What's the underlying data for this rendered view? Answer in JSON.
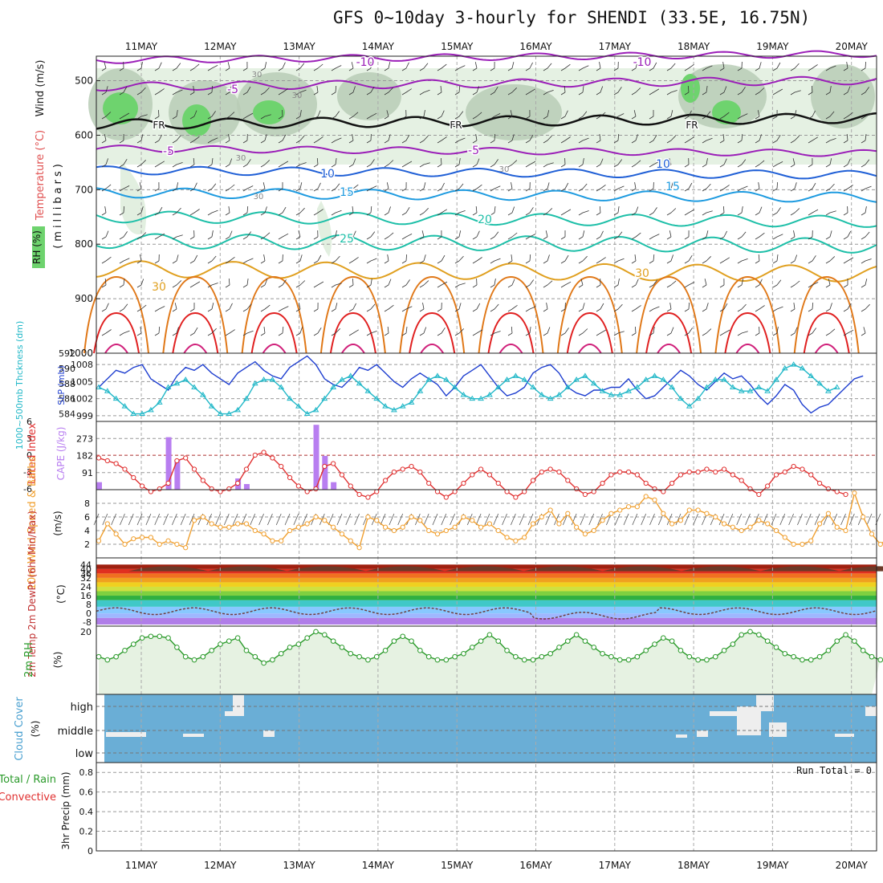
{
  "title": "GFS 0~10day 3-hourly for SHENDI (33.5E, 16.75N)",
  "colors": {
    "rh_light": "#e2efe0",
    "rh_mid": "#b9ccb6",
    "rh_dark": "#8ea88c",
    "rh_green": "#6ed36e",
    "temp_purple": "#9b1fb8",
    "temp_blue": "#1f5fd6",
    "temp_lightblue": "#1e9be0",
    "temp_teal": "#1dbfa8",
    "temp_orange": "#e0a020",
    "temp_dkorange": "#e07818",
    "temp_red": "#e02020",
    "temp_magenta": "#d0207a",
    "slp": "#1f3fd0",
    "thick": "#22b8c8",
    "lifted": "#e03030",
    "cape": "#b87ef0",
    "wind10": "#f0a030",
    "rh2m": "#2a9a2a",
    "cloud": "#6aaed6",
    "precip": "#2a9a2a"
  },
  "chart_data": [
    {
      "panel": "upper-air",
      "type": "heatmap",
      "x_labels": [
        "11MAY",
        "12MAY",
        "13MAY",
        "14MAY",
        "15MAY",
        "16MAY",
        "17MAY",
        "18MAY",
        "19MAY",
        "20MAY"
      ],
      "y_axis": {
        "label": "(millibars)",
        "ticks": [
          500,
          600,
          700,
          800,
          900,
          1000
        ],
        "range": [
          455,
          1000
        ]
      },
      "left_labels": {
        "wind": "Wind (m/s)",
        "temp": "Temperature (°C)",
        "rh": "RH (%)"
      },
      "isotherms": [
        {
          "value": -10,
          "labels": [
            "-10",
            "-10"
          ]
        },
        {
          "value": -5,
          "labels": [
            "-5",
            "-5",
            "-5"
          ]
        },
        {
          "value": 0,
          "labels": [
            "FR",
            "FR",
            "FR"
          ]
        },
        {
          "value": 10,
          "labels": [
            "10",
            "10"
          ]
        },
        {
          "value": 15,
          "labels": [
            "15",
            "15"
          ]
        },
        {
          "value": 20,
          "labels": [
            "20"
          ]
        },
        {
          "value": 25,
          "labels": [
            "25"
          ]
        },
        {
          "value": 30,
          "labels": [
            "30",
            "30"
          ]
        }
      ],
      "rh_labels": [
        "30",
        "30",
        "30",
        "30",
        "30"
      ]
    },
    {
      "panel": "slp-thickness",
      "type": "line",
      "left_axis": {
        "label": "1000~500mb Thckness (dm)",
        "ticks": [
          584,
          586,
          588,
          590,
          592
        ]
      },
      "right_axis": {
        "label": "SLP (mb)",
        "ticks": [
          999,
          1002,
          1005,
          1008
        ]
      },
      "series": [
        {
          "name": "SLP (mb)",
          "values": [
            1004,
            1005.5,
            1007,
            1006.5,
            1007.5,
            1008,
            1005.5,
            1004.5,
            1003.5,
            1006,
            1007.5,
            1007,
            1008,
            1006.5,
            1005.5,
            1004.5,
            1006.5,
            1007.5,
            1008.5,
            1007,
            1006,
            1005.5,
            1007.5,
            1008.5,
            1009.5,
            1008,
            1005.5,
            1004.5,
            1004,
            1005.5,
            1007.5,
            1007,
            1008,
            1006.5,
            1005,
            1004,
            1005.5,
            1006.5,
            1005.5,
            1004.5,
            1002.5,
            1004,
            1006,
            1007,
            1008,
            1006,
            1004,
            1002.5,
            1003,
            1004,
            1006.5,
            1007.5,
            1008,
            1006.5,
            1004,
            1003,
            1002.5,
            1003.5,
            1003.5,
            1004,
            1004,
            1005.5,
            1003.5,
            1002,
            1002.5,
            1004,
            1005.5,
            1007,
            1006,
            1004.5,
            1003.5,
            1005,
            1006.5,
            1005.5,
            1006,
            1004.5,
            1002.5,
            1001,
            1002.5,
            1004.5,
            1003.5,
            1001,
            999.5,
            1000.5,
            1001,
            1002.5,
            1004,
            1005.5,
            1006
          ]
        },
        {
          "name": "1000~500mb Thckness (dm)",
          "values": [
            587.5,
            587,
            586,
            585,
            584,
            584,
            584.5,
            585.5,
            587.5,
            588,
            588.5,
            587.5,
            586.5,
            585,
            584,
            584,
            584.5,
            586,
            588,
            588.5,
            588.5,
            587.5,
            586,
            585,
            584,
            584.5,
            586,
            587.5,
            588.5,
            589,
            588,
            587,
            586,
            585,
            584.5,
            585,
            585.5,
            587,
            588.5,
            589,
            588.5,
            587.5,
            586.5,
            586,
            586,
            586.5,
            587.5,
            588.5,
            589,
            588.5,
            587.5,
            586.5,
            586,
            586.5,
            587.5,
            588.5,
            589,
            588,
            587,
            586.5,
            586.5,
            587,
            587.5,
            588.5,
            589,
            588.5,
            587.5,
            586,
            585,
            586,
            587.5,
            588.5,
            588.5,
            587.5,
            587,
            587,
            587.5,
            587,
            588.5,
            590,
            590.5,
            590,
            589,
            588,
            587,
            587.5
          ]
        }
      ]
    },
    {
      "panel": "cape-lifted",
      "type": "bar",
      "left_axis": {
        "label": "Lifted Index",
        "ticks": [
          "6",
          "3",
          "0",
          "-3",
          "-6"
        ]
      },
      "right_axis": {
        "label": "CAPE (J/kg)",
        "ticks": [
          91,
          182,
          273
        ]
      },
      "series": [
        {
          "name": "CAPE (J/kg)",
          "values": [
            {
              "i": 0,
              "v": 40
            },
            {
              "i": 8,
              "v": 280
            },
            {
              "i": 9,
              "v": 160
            },
            {
              "i": 16,
              "v": 60
            },
            {
              "i": 17,
              "v": 30
            },
            {
              "i": 25,
              "v": 346
            },
            {
              "i": 26,
              "v": 180
            },
            {
              "i": 27,
              "v": 40
            }
          ]
        },
        {
          "name": "Lifted Index",
          "values": [
            0.5,
            1,
            1.5,
            2.5,
            4,
            5.5,
            6.5,
            6,
            5,
            1,
            0.5,
            2.5,
            4.5,
            6,
            6.5,
            6,
            5,
            2.5,
            0,
            -0.5,
            0.5,
            2,
            4,
            5.5,
            6.5,
            6,
            2,
            1.5,
            3.5,
            5.5,
            7,
            7.5,
            6.5,
            4.5,
            3,
            2.5,
            2,
            3,
            5,
            6.5,
            7.5,
            6.5,
            5,
            3.5,
            2.5,
            3.5,
            5,
            6.5,
            7.5,
            6.5,
            4.5,
            3,
            2.5,
            3,
            4.5,
            6,
            7,
            6.5,
            5,
            3.5,
            3,
            3,
            3.5,
            5,
            6,
            6.5,
            5,
            3.5,
            3,
            3,
            2.5,
            3,
            2.5,
            3.5,
            4.5,
            6,
            7,
            5.5,
            3.5,
            3,
            2,
            2.5,
            3.5,
            5,
            6,
            6.5,
            7
          ]
        }
      ]
    },
    {
      "panel": "wind10m",
      "type": "line",
      "axis": {
        "label": "10m Wind Speed & Barbs",
        "unit": "(m/s)",
        "ticks": [
          2,
          4,
          6,
          8
        ]
      },
      "series": [
        {
          "name": "10m Wind Speed",
          "values": [
            2.5,
            5,
            3.5,
            2,
            2.8,
            3,
            3,
            2,
            2.5,
            2,
            1.5,
            5.5,
            6,
            5,
            4.5,
            4.5,
            5,
            5,
            4,
            3.5,
            2.5,
            2.5,
            4,
            4.5,
            5,
            6,
            5.5,
            4.5,
            3.5,
            2.5,
            1.5,
            6,
            5.5,
            4.5,
            4,
            4.5,
            6,
            5.5,
            4,
            3.5,
            4,
            4.5,
            6,
            5.5,
            4.5,
            5,
            4,
            3,
            2.5,
            3,
            5,
            6,
            7,
            5,
            6.5,
            4.5,
            3.5,
            4,
            5.5,
            6.5,
            7,
            7.5,
            7.5,
            9,
            8.5,
            6.5,
            5,
            5.5,
            7,
            7,
            6.5,
            6,
            5,
            4.5,
            4,
            4.5,
            5.5,
            5,
            4,
            3,
            2,
            2,
            2.5,
            5,
            6.5,
            4.5,
            4,
            9.5,
            6,
            3.5,
            2,
            3,
            3.5
          ]
        }
      ]
    },
    {
      "panel": "temp2m",
      "type": "area",
      "axis": {
        "label": "2m Temp 2m DewPt (6hr Min/Max)",
        "unit": "(°C)",
        "ticks": [
          -8,
          0,
          8,
          16,
          24,
          32,
          36,
          40,
          44
        ]
      }
    },
    {
      "panel": "rh2m",
      "type": "line",
      "axis": {
        "label": "2m RH",
        "unit": "(%)",
        "ticks": [
          20
        ]
      },
      "series": [
        {
          "name": "2m RH",
          "values": [
            12,
            11,
            12,
            14,
            16,
            18,
            18.5,
            18.5,
            18,
            15,
            12,
            11,
            12,
            14,
            16,
            17,
            18,
            14,
            12,
            10,
            11,
            13,
            15,
            16,
            18,
            20,
            19,
            17,
            15,
            13,
            12,
            11,
            12,
            14,
            17,
            18.5,
            17,
            14,
            12,
            11,
            11,
            12,
            13,
            15,
            17,
            19,
            17,
            14,
            12,
            11,
            11,
            12,
            13,
            15,
            17,
            19,
            17,
            15,
            13,
            12,
            11,
            11,
            12,
            14,
            16,
            18,
            17,
            14,
            12,
            11,
            11,
            12,
            14,
            16,
            19,
            20,
            19,
            17,
            15,
            13,
            12,
            11,
            11,
            12,
            14,
            17,
            19,
            17,
            14,
            12,
            11
          ]
        }
      ]
    },
    {
      "panel": "cloud",
      "type": "area",
      "axis": {
        "label": "Cloud Cover",
        "unit": "(%)",
        "ticks": [
          "low",
          "middle",
          "high"
        ]
      }
    },
    {
      "panel": "precip",
      "type": "bar",
      "axis": {
        "label": "3hr Precip (mm)",
        "ticks": [
          0,
          0.2,
          0.4,
          0.6,
          0.8
        ]
      },
      "series_labels": [
        "Total / Rain",
        "Convective"
      ],
      "annotation": "Run Total = 0",
      "values": []
    }
  ]
}
